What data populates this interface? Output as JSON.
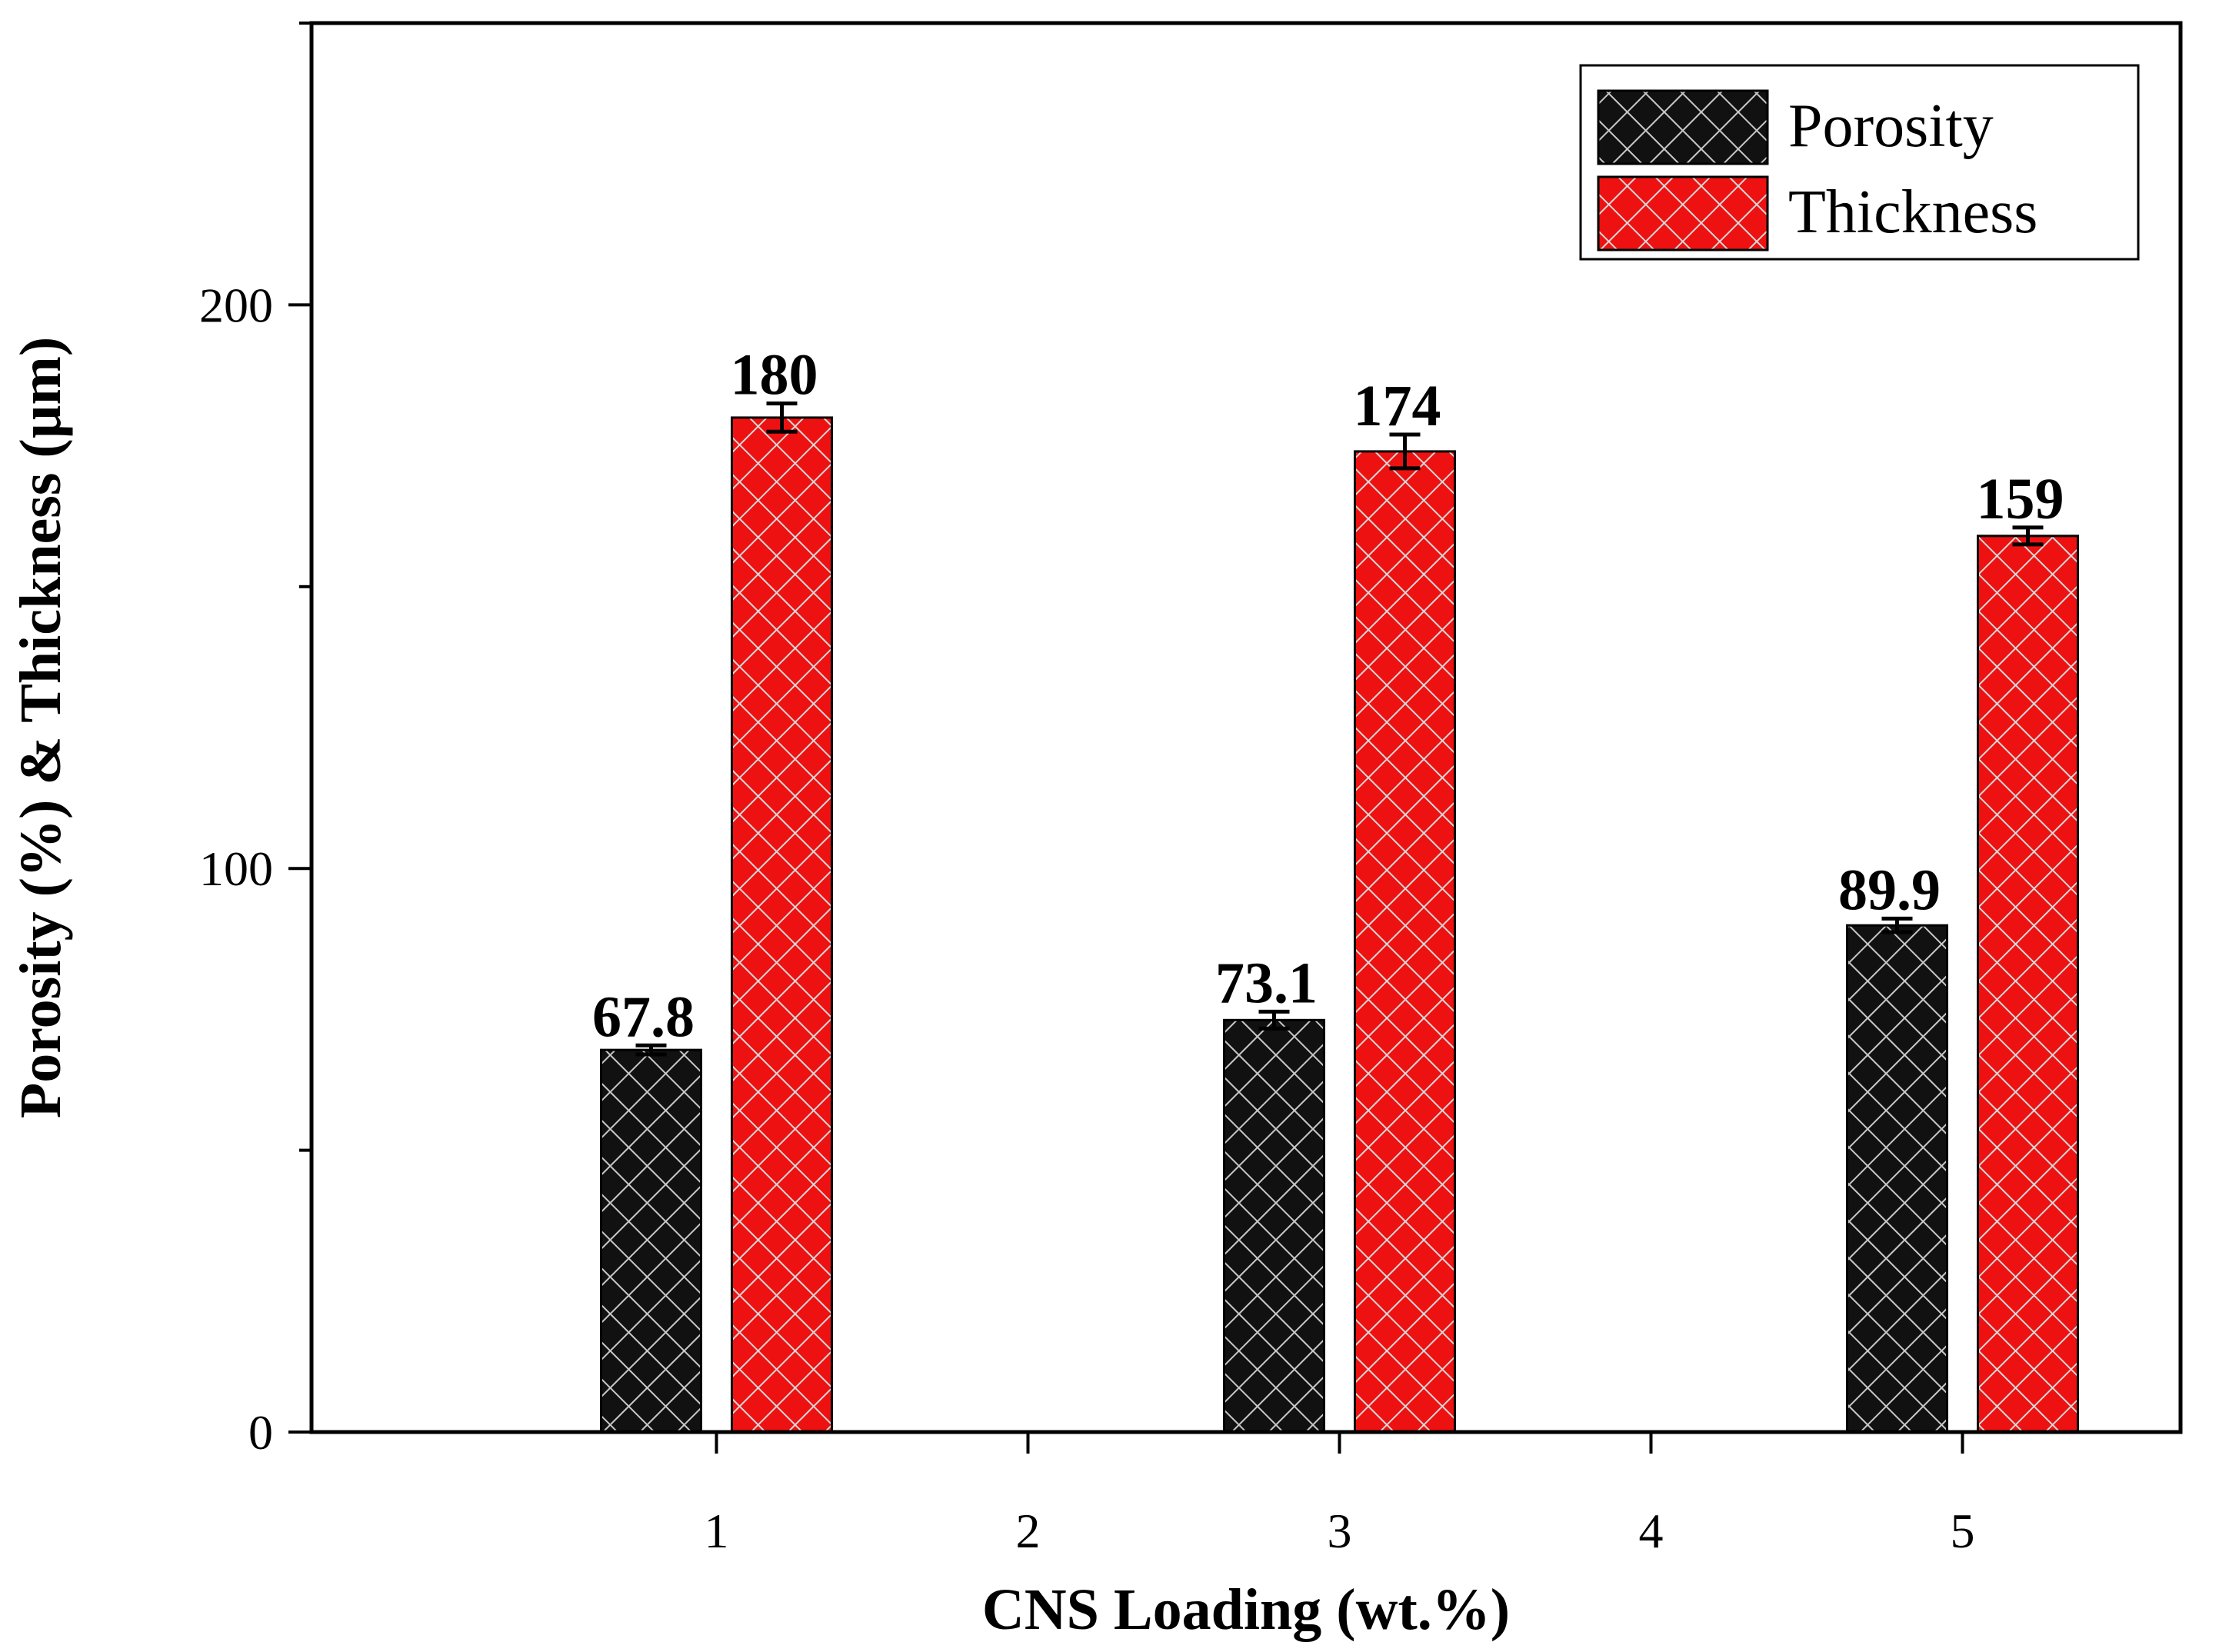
{
  "chart_data": {
    "type": "bar",
    "x": [
      1,
      3,
      5
    ],
    "xlabel": "CNS Loading (wt.%)",
    "ylabel": "Porosity (%) & Thickness (µm)",
    "xlim": [
      -0.3,
      5.7
    ],
    "ylim": [
      0,
      250
    ],
    "x_ticks": [
      1,
      2,
      3,
      4,
      5
    ],
    "y_ticks": [
      0,
      100,
      200
    ],
    "grid": false,
    "legend_position": "top-right",
    "series": [
      {
        "name": "Porosity",
        "color": "#111111",
        "hatch_color": "#c8c8c8",
        "values": [
          67.8,
          73.1,
          89.9
        ],
        "labels": [
          "67.8",
          "73.1",
          "89.9"
        ],
        "errors": [
          0.8,
          1.5,
          1.2
        ]
      },
      {
        "name": "Thickness",
        "color": "#ee1111",
        "hatch_color": "#d8d8d8",
        "values": [
          180,
          174,
          159
        ],
        "labels": [
          "180",
          "174",
          "159"
        ],
        "errors": [
          2.5,
          3.0,
          1.5
        ]
      }
    ]
  }
}
